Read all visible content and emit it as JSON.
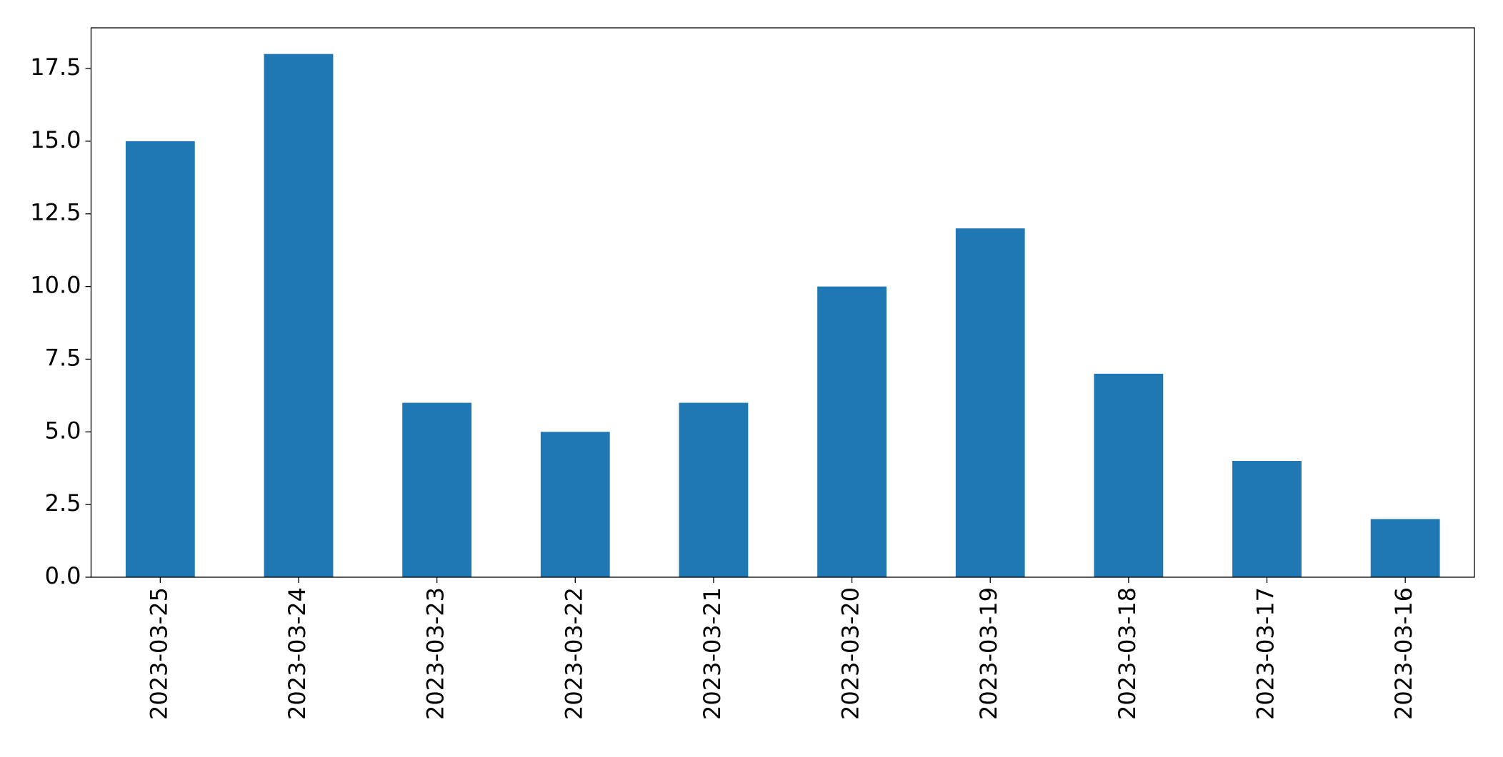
{
  "chart_data": {
    "type": "bar",
    "categories": [
      "2023-03-25",
      "2023-03-24",
      "2023-03-23",
      "2023-03-22",
      "2023-03-21",
      "2023-03-20",
      "2023-03-19",
      "2023-03-18",
      "2023-03-17",
      "2023-03-16"
    ],
    "values": [
      15,
      18,
      6,
      5,
      6,
      10,
      12,
      7,
      4,
      2
    ],
    "color": "#1f77b4",
    "ylim": [
      0,
      18.9
    ],
    "yticks": [
      {
        "value": 0,
        "label": "0.0"
      },
      2.5,
      {
        "value": 5,
        "label": "5.0"
      },
      7.5,
      {
        "value": 10,
        "label": "10.0"
      },
      12.5,
      {
        "value": 15,
        "label": "15.0"
      },
      17.5
    ],
    "grid": false
  }
}
